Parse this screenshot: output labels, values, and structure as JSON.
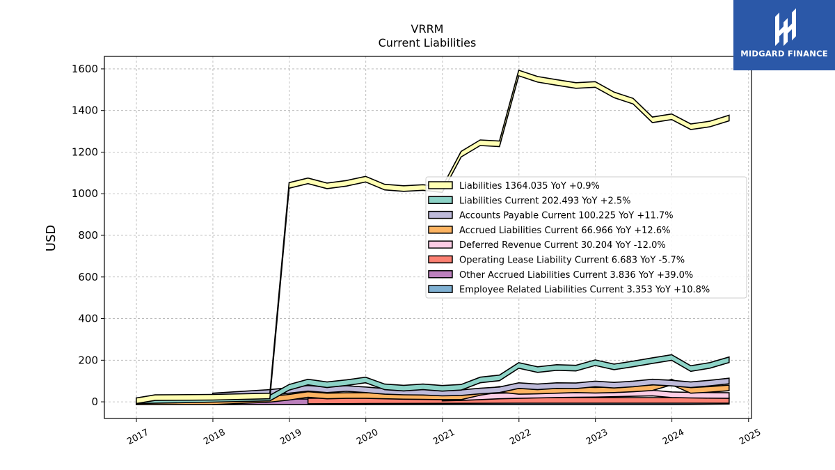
{
  "brand": {
    "name": "MIDGARD FINANCE",
    "bg": "#2b58a8"
  },
  "chart_data": {
    "type": "area",
    "title": "VRRM",
    "subtitle": "Current  Liabilities",
    "ylabel": "USD",
    "ylim": [
      -80,
      1660
    ],
    "yticks": [
      0,
      200,
      400,
      600,
      800,
      1000,
      1200,
      1400,
      1600
    ],
    "xlim": [
      "2016-08-01",
      "2025-01-15"
    ],
    "xticks": [
      "2017",
      "2018",
      "2019",
      "2020",
      "2021",
      "2022",
      "2023",
      "2024",
      "2025"
    ],
    "grid": true,
    "legend_position": "center-right",
    "series": [
      {
        "name": "Liabilities",
        "legend": "Liabilities  1364.035 YoY +0.9%",
        "color": "#ffffb3",
        "x": [
          "2016-12-31",
          "2017-03-31",
          "2017-12-31",
          "2018-09-30",
          "2018-12-31",
          "2019-03-31",
          "2019-06-30",
          "2019-09-30",
          "2019-12-31",
          "2020-03-31",
          "2020-06-30",
          "2020-09-30",
          "2020-12-31",
          "2021-03-31",
          "2021-06-30",
          "2021-09-30",
          "2021-12-31",
          "2022-03-31",
          "2022-06-30",
          "2022-09-30",
          "2022-12-31",
          "2023-03-31",
          "2023-06-30",
          "2023-09-30",
          "2023-12-31",
          "2024-03-31",
          "2024-06-30",
          "2024-09-30"
        ],
        "y": [
          5,
          20,
          22,
          28,
          1040,
          1062,
          1038,
          1050,
          1070,
          1032,
          1025,
          1030,
          1020,
          1190,
          1245,
          1240,
          1580,
          1550,
          1535,
          1520,
          1525,
          1475,
          1445,
          1355,
          1370,
          1322,
          1335,
          1364
        ]
      },
      {
        "name": "Liabilities Current",
        "legend": "Liabilities Current  202.493 YoY +2.5%",
        "color": "#8dd3c7",
        "x": [
          "2016-12-31",
          "2017-12-31",
          "2018-09-30",
          "2018-12-31",
          "2019-03-31",
          "2019-06-30",
          "2019-09-30",
          "2019-12-31",
          "2020-03-31",
          "2020-06-30",
          "2020-09-30",
          "2020-12-31",
          "2021-03-31",
          "2021-06-30",
          "2021-09-30",
          "2021-12-31",
          "2022-03-31",
          "2022-06-30",
          "2022-09-30",
          "2022-12-31",
          "2023-03-31",
          "2023-06-30",
          "2023-09-30",
          "2023-12-31",
          "2024-03-31",
          "2024-06-30",
          "2024-09-30"
        ],
        "y": [
          5,
          12,
          18,
          70,
          95,
          82,
          92,
          105,
          72,
          66,
          72,
          65,
          70,
          105,
          115,
          175,
          155,
          165,
          162,
          188,
          168,
          182,
          198,
          213,
          160,
          175,
          202
        ]
      },
      {
        "name": "Accounts Payable Current",
        "legend": "Accounts Payable Current  100.225 YoY +11.7%",
        "color": "#bebada",
        "x": [
          "2017-12-31",
          "2018-09-30",
          "2018-12-31",
          "2019-03-31",
          "2019-06-30",
          "2019-09-30",
          "2019-12-31",
          "2020-03-31",
          "2020-06-30",
          "2020-09-30",
          "2020-12-31",
          "2021-03-31",
          "2021-06-30",
          "2021-09-30",
          "2021-12-31",
          "2022-03-31",
          "2022-06-30",
          "2022-09-30",
          "2022-12-31",
          "2023-03-31",
          "2023-06-30",
          "2023-09-30",
          "2023-12-31",
          "2024-03-31",
          "2024-06-30",
          "2024-09-30"
        ],
        "y": [
          28,
          45,
          55,
          65,
          58,
          64,
          58,
          50,
          47,
          46,
          42,
          44,
          52,
          58,
          78,
          72,
          78,
          77,
          86,
          80,
          86,
          95,
          90,
          82,
          90,
          100
        ]
      },
      {
        "name": "Accrued Liabilities Current",
        "legend": "Accrued Liabilities Current  66.966 YoY +12.6%",
        "color": "#fdb462",
        "x": [
          "2016-12-31",
          "2017-12-31",
          "2018-09-30",
          "2018-12-31",
          "2019-03-31",
          "2019-06-30",
          "2019-09-30",
          "2019-12-31",
          "2020-03-31",
          "2020-06-30",
          "2020-09-30",
          "2020-12-31",
          "2021-03-31",
          "2021-06-30",
          "2021-09-30",
          "2021-12-31",
          "2022-03-31",
          "2022-06-30",
          "2022-09-30",
          "2022-12-31",
          "2023-03-31",
          "2023-06-30",
          "2023-09-30",
          "2023-12-31",
          "2024-03-31",
          "2024-06-30",
          "2024-09-30"
        ],
        "y": [
          0,
          0,
          12,
          22,
          35,
          28,
          30,
          30,
          28,
          26,
          25,
          24,
          24,
          45,
          60,
          50,
          52,
          55,
          58,
          56,
          58,
          62,
          68,
          95,
          55,
          60,
          67
        ]
      },
      {
        "name": "Deferred Revenue Current",
        "legend": "Deferred Revenue Current  30.204 YoY -12.0%",
        "color": "#fccde5",
        "x": [
          "2020-12-31",
          "2021-03-31",
          "2021-06-30",
          "2021-09-30",
          "2021-12-31",
          "2022-03-31",
          "2022-06-30",
          "2022-09-30",
          "2022-12-31",
          "2023-03-31",
          "2023-06-30",
          "2023-09-30",
          "2023-12-31",
          "2024-03-31",
          "2024-06-30",
          "2024-09-30"
        ],
        "y": [
          18,
          20,
          24,
          28,
          30,
          32,
          34,
          35,
          36,
          38,
          40,
          42,
          34,
          32,
          31,
          30
        ]
      },
      {
        "name": "Operating Lease Liability Current",
        "legend": "Operating Lease Liability Current  6.683 YoY -5.7%",
        "color": "#fb8072",
        "x": [
          "2019-03-31",
          "2019-12-31",
          "2020-12-31",
          "2021-12-31",
          "2022-12-31",
          "2023-12-31",
          "2024-09-30"
        ],
        "y": [
          4,
          5,
          6,
          7,
          7,
          7,
          7
        ]
      },
      {
        "name": "Other Accrued Liabilities Current",
        "legend": "Other Accrued Liabilities Current  3.836 YoY +39.0%",
        "color": "#bc80bd",
        "x": [
          "2017-12-31",
          "2018-12-31",
          "2019-12-31"
        ],
        "y": [
          0,
          0,
          0
        ]
      },
      {
        "name": "Employee Related Liabilities Current",
        "legend": "Employee Related Liabilities Current  3.353 YoY +10.8%",
        "color": "#80b1d3",
        "x": [
          "2019-12-31",
          "2020-12-31",
          "2021-12-31",
          "2022-12-31",
          "2023-12-31",
          "2024-09-30"
        ],
        "y": [
          0,
          0,
          0,
          0,
          0,
          3
        ]
      }
    ]
  }
}
